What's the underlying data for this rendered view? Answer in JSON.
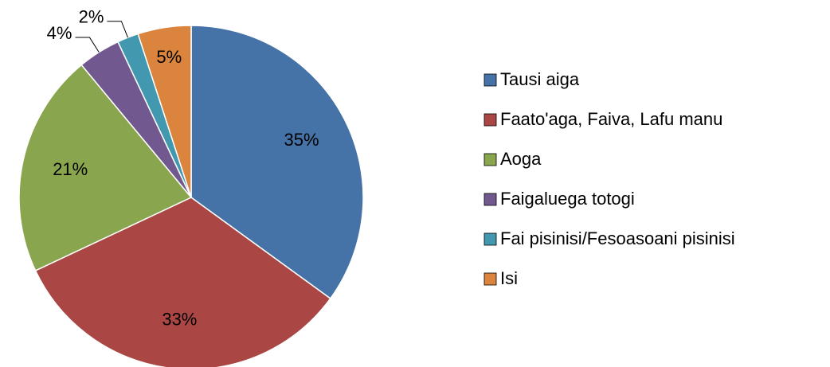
{
  "chart_data": {
    "type": "pie",
    "categories": [
      "Tausi aiga",
      "Faato'aga, Faiva, Lafu manu",
      "Aoga",
      "Faigaluega totogi",
      "Fai pisinisi/Fesoasoani pisinisi",
      "Isi"
    ],
    "values": [
      35,
      33,
      21,
      4,
      2,
      5
    ],
    "value_labels": [
      "35%",
      "33%",
      "21%",
      "4%",
      "2%",
      "5%"
    ],
    "colors": [
      "#4572a7",
      "#aa4643",
      "#89a54e",
      "#71588f",
      "#4198af",
      "#db843d"
    ],
    "legend": "right"
  }
}
